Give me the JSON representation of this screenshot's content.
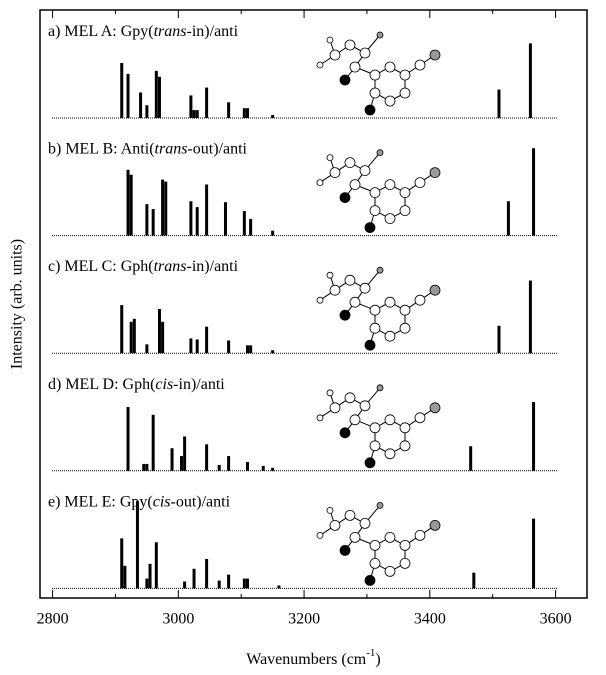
{
  "chart_data": [
    {
      "type": "stick",
      "title_parts": [
        "a) MEL A: Gpy(",
        "trans",
        "-in)/anti"
      ],
      "xlim": [
        2780,
        3650
      ],
      "ylim": [
        0,
        110
      ],
      "color": "#000000",
      "x": [
        2910,
        2920,
        2940,
        2950,
        2965,
        2970,
        3020,
        3025,
        3030,
        3045,
        3080,
        3105,
        3110,
        3150,
        3510,
        3560
      ],
      "values": [
        56,
        45,
        26,
        13,
        48,
        42,
        23,
        8,
        8,
        31,
        16,
        10,
        10,
        3,
        29,
        76
      ]
    },
    {
      "type": "stick",
      "title_parts": [
        "b) MEL B: Anti(",
        "trans",
        "-out)/anti"
      ],
      "xlim": [
        2780,
        3650
      ],
      "ylim": [
        0,
        110
      ],
      "color": "#000000",
      "x": [
        2920,
        2925,
        2950,
        2960,
        2975,
        2980,
        3020,
        3030,
        3045,
        3075,
        3105,
        3115,
        3150,
        3525,
        3565
      ],
      "values": [
        67,
        62,
        32,
        27,
        57,
        55,
        35,
        29,
        52,
        34,
        25,
        17,
        5,
        35,
        89
      ]
    },
    {
      "type": "stick",
      "title_parts": [
        "c) MEL C: Gph(",
        "trans",
        "-in)/anti"
      ],
      "xlim": [
        2780,
        3650
      ],
      "ylim": [
        0,
        110
      ],
      "color": "#000000",
      "x": [
        2910,
        2925,
        2930,
        2950,
        2970,
        2975,
        3020,
        3030,
        3045,
        3080,
        3110,
        3115,
        3150,
        3510,
        3560
      ],
      "values": [
        49,
        32,
        35,
        9,
        45,
        32,
        15,
        14,
        27,
        13,
        8,
        8,
        3,
        28,
        74
      ]
    },
    {
      "type": "stick",
      "title_parts": [
        "d) MEL D: Gph(",
        "cis",
        "-in)/anti"
      ],
      "xlim": [
        2780,
        3650
      ],
      "ylim": [
        0,
        110
      ],
      "color": "#000000",
      "x": [
        2920,
        2945,
        2950,
        2960,
        2990,
        3005,
        3010,
        3045,
        3065,
        3080,
        3110,
        3135,
        3150,
        3465,
        3565
      ],
      "values": [
        65,
        7,
        7,
        57,
        23,
        15,
        35,
        27,
        6,
        15,
        9,
        5,
        3,
        25,
        70
      ]
    },
    {
      "type": "stick",
      "title_parts": [
        "e) MEL E: Gpy(",
        "cis",
        "-out)/anti"
      ],
      "xlim": [
        2780,
        3650
      ],
      "ylim": [
        0,
        110
      ],
      "color": "#000000",
      "x": [
        2910,
        2915,
        2935,
        2950,
        2955,
        2965,
        3010,
        3025,
        3045,
        3065,
        3080,
        3105,
        3110,
        3160,
        3470,
        3565
      ],
      "values": [
        51,
        23,
        89,
        10,
        25,
        47,
        7,
        20,
        30,
        8,
        14,
        10,
        10,
        3,
        16,
        71
      ],
      "xticks": [
        2800,
        3000,
        3200,
        3400,
        3600
      ],
      "xminorticks": [
        2900,
        3100,
        3300,
        3500
      ],
      "xlabel_parts": [
        "Wavenumbers (cm",
        "-1",
        ")"
      ],
      "ylabel": "Intensity (arb. units)"
    }
  ]
}
